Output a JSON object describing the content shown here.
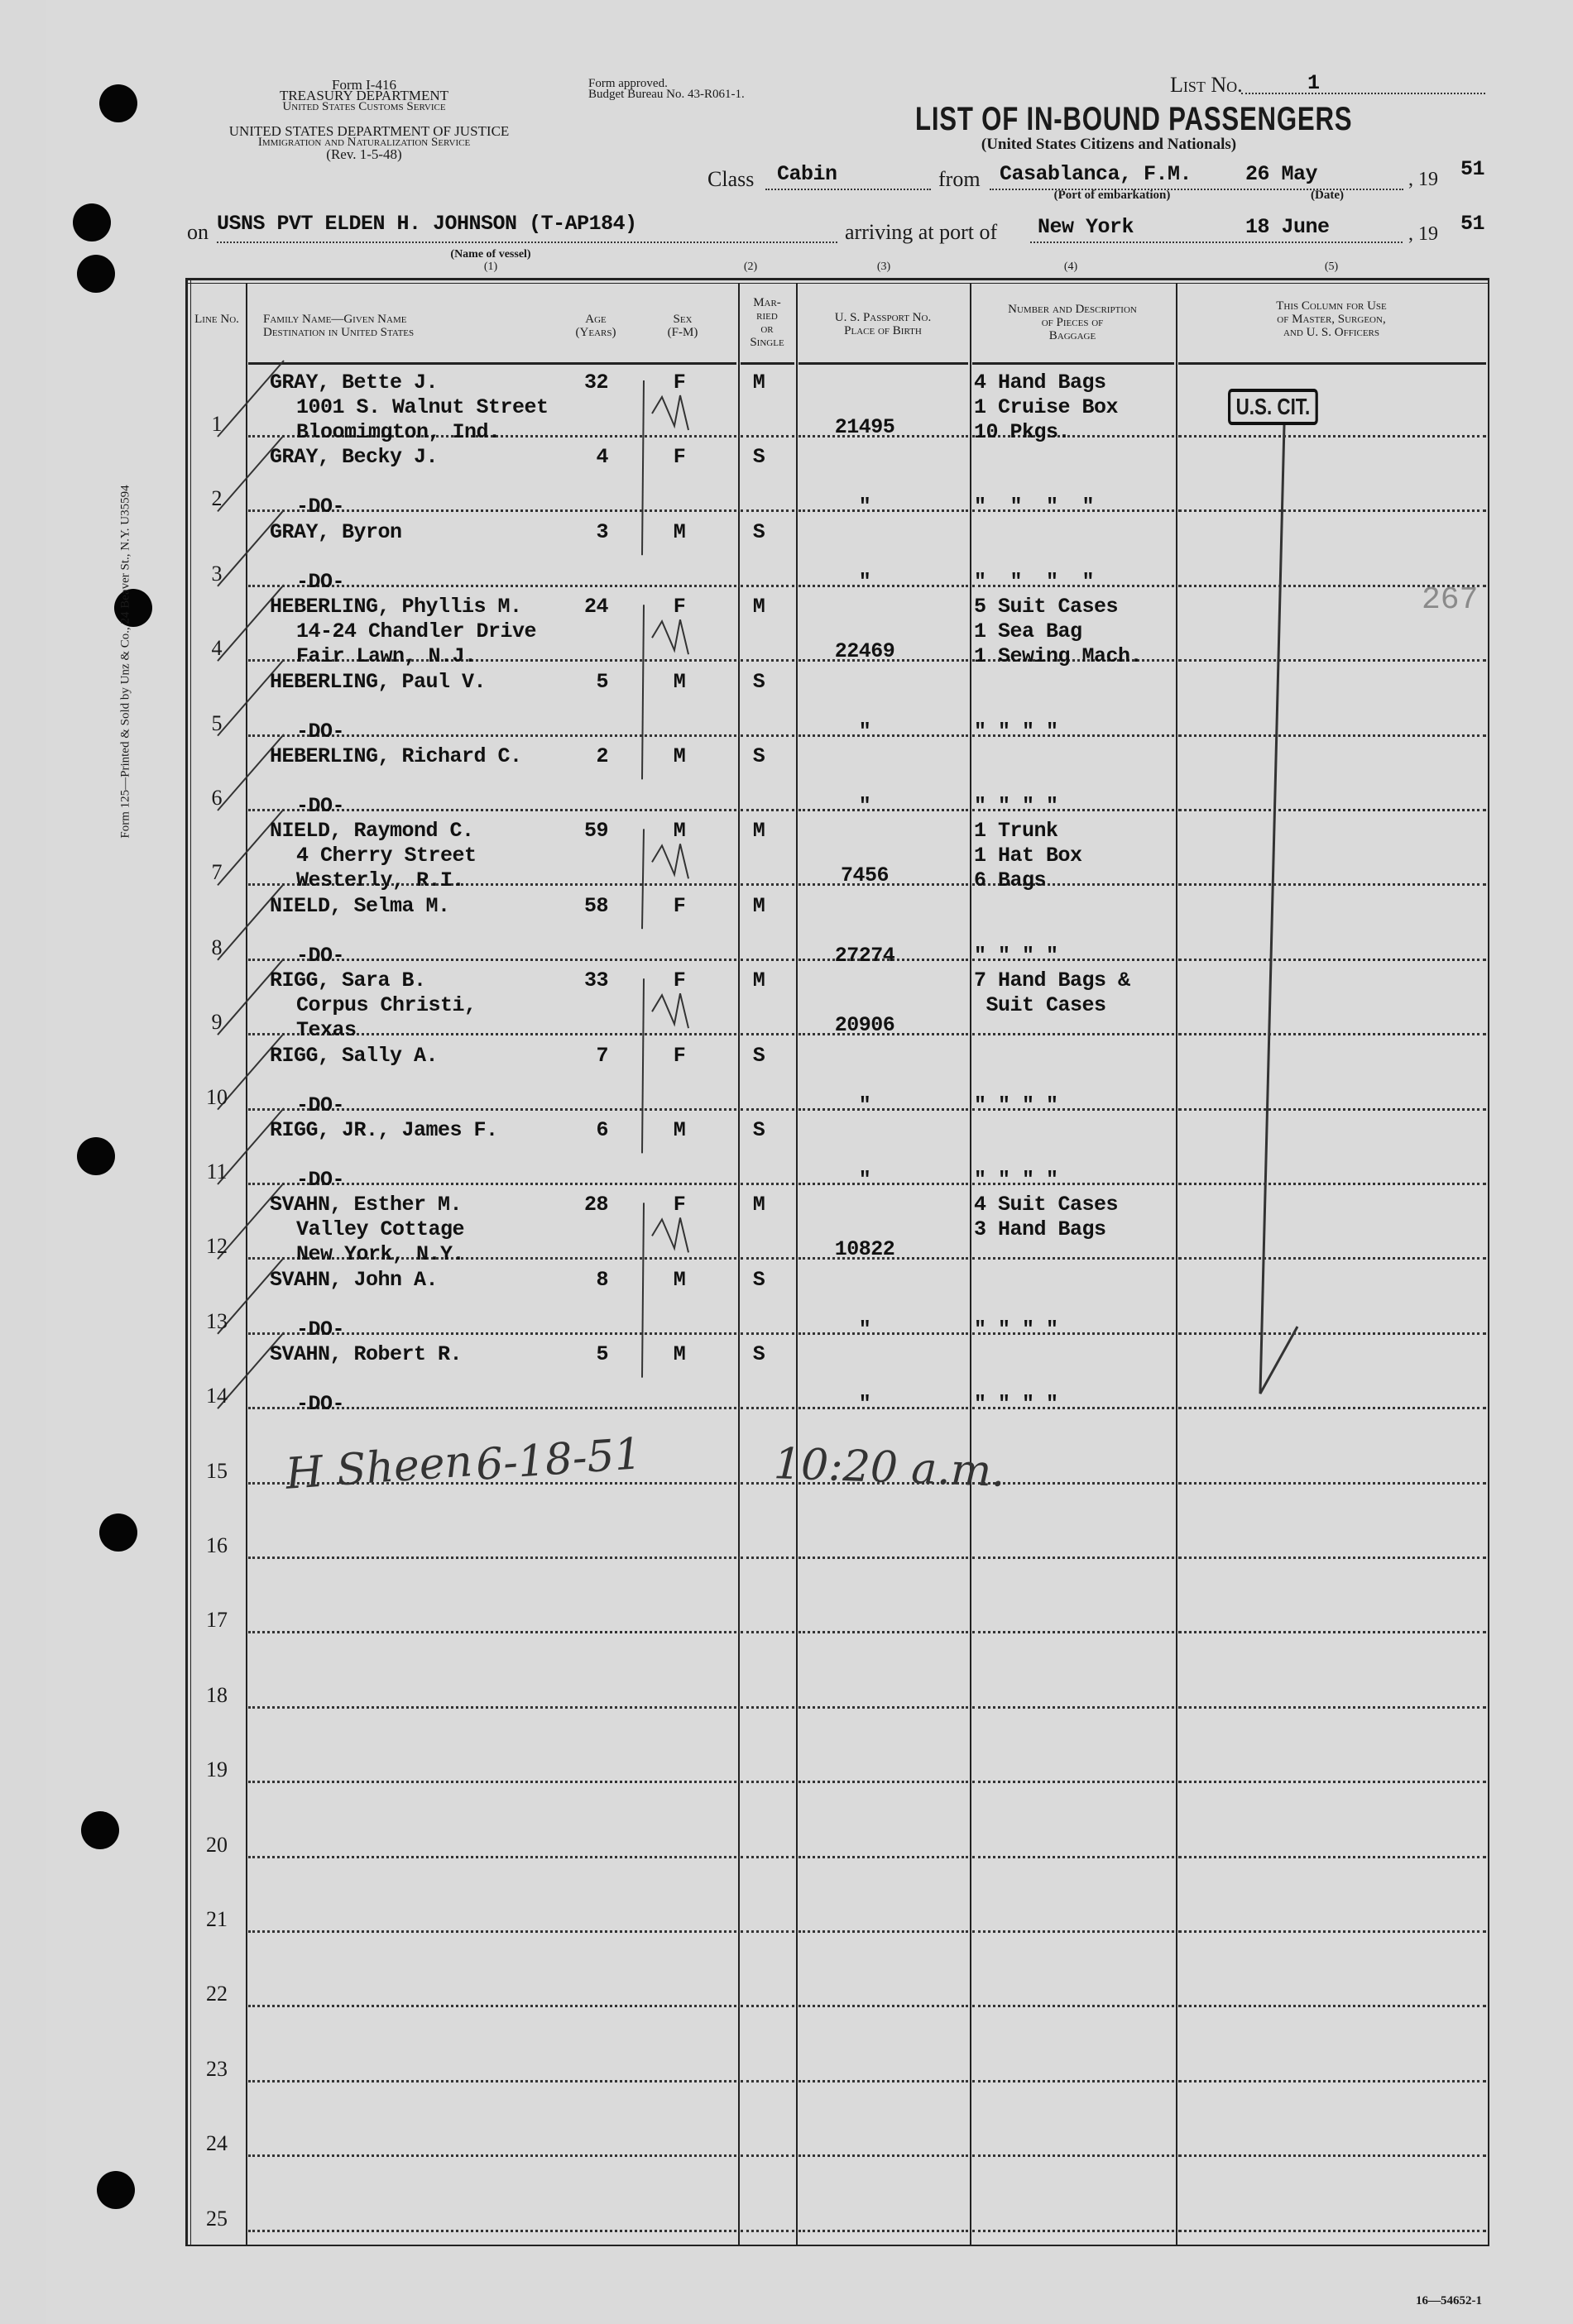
{
  "form": {
    "form_number": "Form I-416",
    "dept1": "TREASURY DEPARTMENT",
    "dept1_sub": "United States Customs Service",
    "dept2": "UNITED STATES DEPARTMENT OF JUSTICE",
    "dept2_sub": "Immigration and Naturalization Service",
    "revision": "(Rev. 1-5-48)",
    "approved": "Form approved.",
    "budget": "Budget Bureau No. 43-R061-1.",
    "list_no_label": "List No.",
    "list_no": "1",
    "title": "LIST OF IN-BOUND PASSENGERS",
    "subtitle": "(United States Citizens and Nationals)",
    "class_label": "Class",
    "class_value": "Cabin",
    "from_label": "from",
    "port_embarkation": "Casablanca, F.M.",
    "depart_date": "26 May",
    "year_prefix": ", 19",
    "depart_year": "51",
    "port_caption": "(Port of embarkation)",
    "date_caption": "(Date)",
    "on_label": "on",
    "vessel": "USNS PVT ELDEN H. JOHNSON (T-AP184)",
    "arriving_label": "arriving at port of",
    "arrival_port": "New York",
    "arrival_date": "18 June",
    "arrival_year": "51",
    "vessel_caption": "(Name of vessel)",
    "col_numbers": [
      "(1)",
      "(2)",
      "(3)",
      "(4)",
      "(5)"
    ],
    "side_imprint": "Form 125—Printed & Sold by Unz & Co., 24 Beaver St., N.Y. U35594",
    "footer_code": "16—54652-1"
  },
  "table": {
    "headers": {
      "line": "Line No.",
      "name": "Family Name—Given Name",
      "name2": "Destination in United States",
      "age": "Age",
      "age2": "(Years)",
      "sex": "Sex",
      "sex2": "(F-M)",
      "married": "Mar-",
      "married2": "ried",
      "married3": "or",
      "married4": "Single",
      "passport": "U. S. Passport No.",
      "passport2": "Place of Birth",
      "baggage": "Number and Description",
      "baggage2": "of Pieces of",
      "baggage3": "Baggage",
      "officers": "This Column for Use",
      "officers2": "of Master, Surgeon,",
      "officers3": "and U. S. Officers"
    },
    "line_numbers": [
      "1",
      "2",
      "3",
      "4",
      "5",
      "6",
      "7",
      "8",
      "9",
      "10",
      "11",
      "12",
      "13",
      "14",
      "15",
      "16",
      "17",
      "18",
      "19",
      "20",
      "21",
      "22",
      "23",
      "24",
      "25"
    ],
    "rows": [
      {
        "name": "GRAY, Bette J.",
        "dest": [
          "1001 S. Walnut Street",
          "Bloomimgton, Ind."
        ],
        "age": "32",
        "sex": "F",
        "marital": "M",
        "passport": "21495",
        "baggage": [
          "4 Hand Bags",
          "1 Cruise Box",
          "10 Pkgs."
        ]
      },
      {
        "name": "GRAY, Becky J.",
        "dest": [
          "-DO-"
        ],
        "age": "4",
        "sex": "F",
        "marital": "S",
        "passport": "\"",
        "baggage": [
          "\"  \"  \"  \""
        ]
      },
      {
        "name": "GRAY, Byron",
        "dest": [
          "-DO-"
        ],
        "age": "3",
        "sex": "M",
        "marital": "S",
        "passport": "\"",
        "baggage": [
          "\"  \"  \"  \""
        ]
      },
      {
        "name": "HEBERLING, Phyllis M.",
        "dest": [
          "14-24 Chandler Drive",
          "Fair Lawn, N.J."
        ],
        "age": "24",
        "sex": "F",
        "marital": "M",
        "passport": "22469",
        "baggage": [
          "5 Suit Cases",
          "1 Sea Bag",
          "1 Sewing Mach."
        ]
      },
      {
        "name": "HEBERLING, Paul V.",
        "dest": [
          "-DO-"
        ],
        "age": "5",
        "sex": "M",
        "marital": "S",
        "passport": "\"",
        "baggage": [
          "\" \" \" \""
        ]
      },
      {
        "name": "HEBERLING, Richard C.",
        "dest": [
          "-DO-"
        ],
        "age": "2",
        "sex": "M",
        "marital": "S",
        "passport": "\"",
        "baggage": [
          "\" \" \" \""
        ]
      },
      {
        "name": "NIELD, Raymond C.",
        "dest": [
          "4 Cherry Street",
          "Westerly, R.I."
        ],
        "age": "59",
        "sex": "M",
        "marital": "M",
        "passport": "7456",
        "baggage": [
          "1 Trunk",
          "1 Hat Box",
          "6 Bags"
        ]
      },
      {
        "name": "NIELD, Selma M.",
        "dest": [
          "-DO-"
        ],
        "age": "58",
        "sex": "F",
        "marital": "M",
        "passport": "27274",
        "baggage": [
          "\" \" \" \""
        ]
      },
      {
        "name": "RIGG, Sara B.",
        "dest": [
          "Corpus Christi,",
          "Texas"
        ],
        "age": "33",
        "sex": "F",
        "marital": "M",
        "passport": "20906",
        "baggage": [
          "7 Hand Bags &",
          " Suit Cases"
        ]
      },
      {
        "name": "RIGG, Sally A.",
        "dest": [
          "-DO-"
        ],
        "age": "7",
        "sex": "F",
        "marital": "S",
        "passport": "\"",
        "baggage": [
          "\" \" \" \""
        ]
      },
      {
        "name": "RIGG, JR., James F.",
        "dest": [
          "-DO-"
        ],
        "age": "6",
        "sex": "M",
        "marital": "S",
        "passport": "\"",
        "baggage": [
          "\" \" \" \""
        ]
      },
      {
        "name": "SVAHN, Esther M.",
        "dest": [
          "Valley Cottage",
          "New York, N.Y."
        ],
        "age": "28",
        "sex": "F",
        "marital": "M",
        "passport": "10822",
        "baggage": [
          "4 Suit Cases",
          "3 Hand Bags"
        ]
      },
      {
        "name": "SVAHN, John A.",
        "dest": [
          "-DO-"
        ],
        "age": "8",
        "sex": "M",
        "marital": "S",
        "passport": "\"",
        "baggage": [
          "\" \" \" \""
        ]
      },
      {
        "name": "SVAHN, Robert R.",
        "dest": [
          "-DO-"
        ],
        "age": "5",
        "sex": "M",
        "marital": "S",
        "passport": "\"",
        "baggage": [
          "\" \" \" \""
        ]
      }
    ],
    "handwritten_signature": "H Sheen",
    "handwritten_date": "6-18-51",
    "handwritten_time": "10:20 a.m.",
    "stamp": "U.S. CIT.",
    "page_stamp": "267"
  }
}
